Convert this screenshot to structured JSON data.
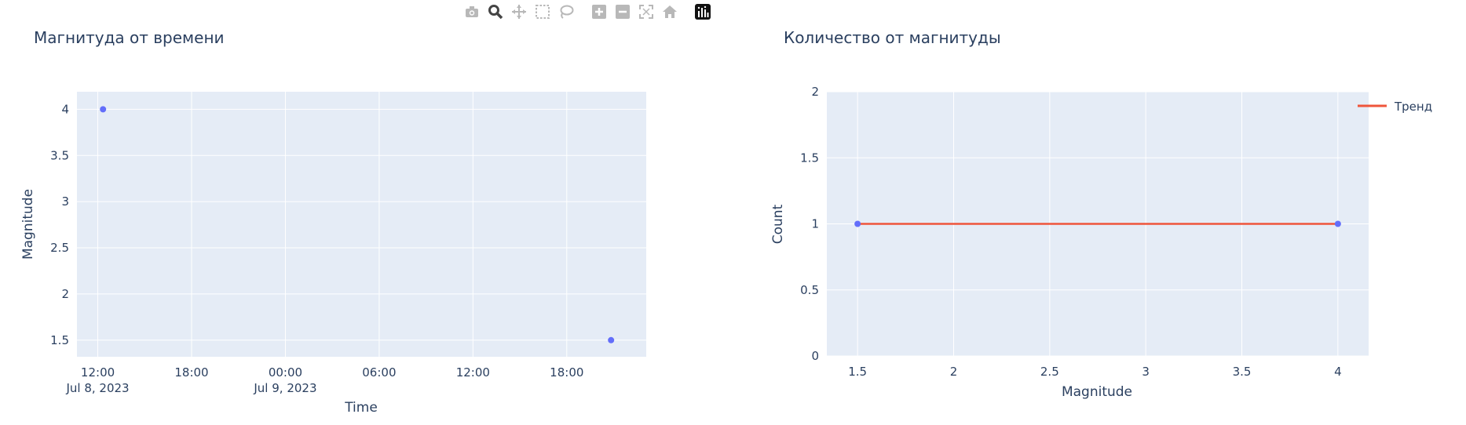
{
  "toolbar": {
    "buttons": [
      {
        "name": "camera-icon",
        "label": "Download plot as a png"
      },
      {
        "name": "zoom-icon",
        "label": "Zoom",
        "active": true
      },
      {
        "name": "pan-icon",
        "label": "Pan"
      },
      {
        "name": "box-select-icon",
        "label": "Box Select"
      },
      {
        "name": "lasso-select-icon",
        "label": "Lasso Select"
      },
      {
        "name": "zoom-in-icon",
        "label": "Zoom in"
      },
      {
        "name": "zoom-out-icon",
        "label": "Zoom out"
      },
      {
        "name": "autoscale-icon",
        "label": "Autoscale"
      },
      {
        "name": "reset-axes-icon",
        "label": "Reset axes"
      },
      {
        "name": "plotly-logo-icon",
        "label": "Produced with Plotly"
      }
    ]
  },
  "colors": {
    "plot_bg": "#e5ecf6",
    "grid": "#ffffff",
    "text": "#2a3f5f",
    "marker": "#636efa",
    "trend": "#ef553b",
    "icon": "#b8b8b8",
    "icon_active": "#444444"
  },
  "chart_data": [
    {
      "type": "scatter",
      "title": "Магнитуда от времени",
      "xlabel": "Time",
      "ylabel": "Magnitude",
      "x_ticks": [
        {
          "time": "2023-07-08T12:00",
          "line1": "12:00",
          "line2": "Jul 8, 2023"
        },
        {
          "time": "2023-07-08T18:00",
          "line1": "18:00",
          "line2": ""
        },
        {
          "time": "2023-07-09T00:00",
          "line1": "00:00",
          "line2": "Jul 9, 2023"
        },
        {
          "time": "2023-07-09T06:00",
          "line1": "06:00",
          "line2": ""
        },
        {
          "time": "2023-07-09T12:00",
          "line1": "12:00",
          "line2": ""
        },
        {
          "time": "2023-07-09T18:00",
          "line1": "18:00",
          "line2": ""
        }
      ],
      "xlim": [
        "2023-07-08T10:40",
        "2023-07-09T23:05"
      ],
      "y_ticks": [
        1.5,
        2,
        2.5,
        3,
        3.5,
        4
      ],
      "ylim": [
        1.32,
        4.19
      ],
      "grid": true,
      "series": [
        {
          "points": [
            {
              "x": "2023-07-08T12:20",
              "y": 4
            },
            {
              "x": "2023-07-09T20:50",
              "y": 1.5
            }
          ]
        }
      ]
    },
    {
      "type": "line",
      "title": "Количество от магнитуды",
      "xlabel": "Magnitude",
      "ylabel": "Count",
      "x_ticks": [
        1.5,
        2,
        2.5,
        3,
        3.5,
        4
      ],
      "xlim": [
        1.34,
        4.16
      ],
      "y_ticks": [
        0,
        0.5,
        1,
        1.5,
        2
      ],
      "ylim": [
        0,
        2
      ],
      "grid": true,
      "legend_position": "top-right",
      "series": [
        {
          "mode": "markers",
          "x": [
            1.5,
            4
          ],
          "y": [
            1,
            1
          ]
        },
        {
          "name": "Тренд",
          "mode": "line",
          "x": [
            1.5,
            4
          ],
          "y": [
            1,
            1
          ]
        }
      ]
    }
  ]
}
